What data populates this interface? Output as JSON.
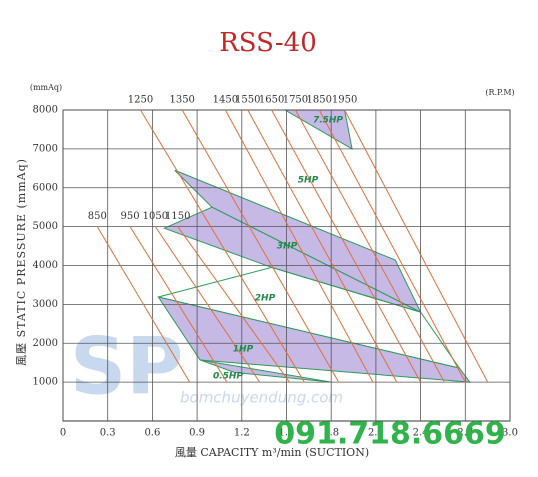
{
  "chart_data": {
    "type": "line",
    "title": "RSS-40",
    "y_unit": "(mmAq)",
    "rpm_unit": "(R.P.M)",
    "ylabel": "風壓 STATIC PRESSURE (mmAq)",
    "xlabel": "風量 CAPACITY m³/min (SUCTION)",
    "xlim": [
      0,
      3
    ],
    "ylim": [
      0,
      8000
    ],
    "xticks": [
      0,
      0.3,
      0.6,
      0.9,
      1.2,
      1.5,
      1.8,
      2.1,
      2.4,
      2.7,
      {
        "value": 3,
        "label": "3.0"
      }
    ],
    "yticks": [
      1000,
      2000,
      3000,
      4000,
      5000,
      6000,
      7000,
      8000
    ],
    "grid": true,
    "series": [
      {
        "name": "850",
        "color": "#e0703a",
        "x": [
          0.23,
          0.85
        ],
        "y": [
          5000,
          1000
        ]
      },
      {
        "name": "950",
        "color": "#e0703a",
        "x": [
          0.45,
          1.1
        ],
        "y": [
          5000,
          1000
        ]
      },
      {
        "name": "1050",
        "color": "#e0703a",
        "x": [
          0.62,
          1.32
        ],
        "y": [
          5000,
          1000
        ]
      },
      {
        "name": "1150",
        "color": "#e0703a",
        "x": [
          0.77,
          1.52
        ],
        "y": [
          5000,
          1000
        ]
      },
      {
        "name": "1250",
        "color": "#e0703a",
        "x": [
          0.52,
          1.62
        ],
        "y": [
          8000,
          1000
        ]
      },
      {
        "name": "1350",
        "color": "#e0703a",
        "x": [
          0.8,
          1.85
        ],
        "y": [
          8000,
          1000
        ]
      },
      {
        "name": "1450",
        "color": "#e0703a",
        "x": [
          1.09,
          2.08
        ],
        "y": [
          8000,
          1000
        ]
      },
      {
        "name": "1550",
        "color": "#e0703a",
        "x": [
          1.24,
          2.24
        ],
        "y": [
          8000,
          1000
        ]
      },
      {
        "name": "1650",
        "color": "#e0703a",
        "x": [
          1.4,
          2.4
        ],
        "y": [
          8000,
          1000
        ]
      },
      {
        "name": "1750",
        "color": "#e0703a",
        "x": [
          1.56,
          2.56
        ],
        "y": [
          8000,
          1000
        ]
      },
      {
        "name": "1850",
        "color": "#e0703a",
        "x": [
          1.72,
          2.7
        ],
        "y": [
          8000,
          1000
        ]
      },
      {
        "name": "1950",
        "color": "#e0703a",
        "x": [
          1.89,
          2.85
        ],
        "y": [
          8000,
          1000
        ]
      }
    ],
    "regions": [
      {
        "name": "7.5HP",
        "color": "#b8a8e0",
        "x": [
          1.49,
          1.89,
          1.94
        ],
        "y": [
          8000,
          8000,
          7000
        ]
      },
      {
        "name": "5HP",
        "color": "#b8a8e0",
        "x": [
          0.75,
          2.23,
          2.4,
          1.0
        ],
        "y": [
          6450,
          4140,
          2800,
          5500
        ]
      },
      {
        "name": "3HP",
        "color": "#b8a8e0",
        "x": [
          0.68,
          1.0,
          2.4,
          1.4
        ],
        "y": [
          4960,
          5500,
          2800,
          3950
        ]
      },
      {
        "name": "2HP",
        "color": "none",
        "x": [
          0.64,
          1.4,
          2.4,
          2.66
        ],
        "y": [
          3190,
          3950,
          2800,
          1360
        ]
      },
      {
        "name": "1HP",
        "color": "#b8a8e0",
        "x": [
          0.64,
          2.66,
          2.73,
          0.92
        ],
        "y": [
          3190,
          1360,
          1000,
          1570
        ]
      },
      {
        "name": "0.5HP",
        "color": "#b8a8e0",
        "x": [
          0.92,
          1.8,
          1.15
        ],
        "y": [
          1570,
          1000,
          1250
        ]
      }
    ]
  },
  "watermark": {
    "logo": "SP",
    "site": "bomchuyendung.com",
    "phone": "091.718.6669"
  }
}
